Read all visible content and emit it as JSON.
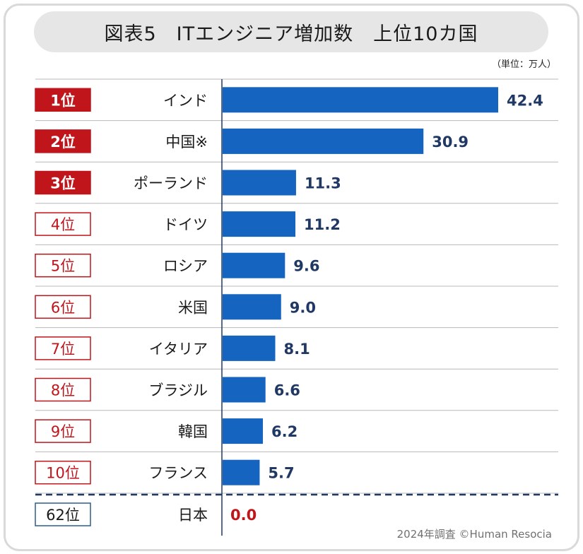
{
  "title": "図表5　ITエンジニア増加数　上位10カ国",
  "unit": "（単位：万人）",
  "footer": "2024年調査 ©Human Resocia",
  "colors": {
    "bar": "#1565c0",
    "rank_top": "#c0151b",
    "rank_outline": "#c0151b",
    "japan_outline": "#2b5d8a",
    "value_text": "#1f3864",
    "japan_value": "#c0151b",
    "row_line": "#b8b8b8",
    "axis": "#1f3864"
  },
  "chart_data": {
    "type": "bar",
    "orientation": "horizontal",
    "title": "ITエンジニア増加数　上位10カ国",
    "unit": "万人",
    "xlim": [
      0,
      42.4
    ],
    "rows": [
      {
        "rank": "1位",
        "country": "インド",
        "value": 42.4,
        "label": "42.4",
        "style": "top"
      },
      {
        "rank": "2位",
        "country": "中国※",
        "value": 30.9,
        "label": "30.9",
        "style": "top"
      },
      {
        "rank": "3位",
        "country": "ポーランド",
        "value": 11.3,
        "label": "11.3",
        "style": "top"
      },
      {
        "rank": "4位",
        "country": "ドイツ",
        "value": 11.2,
        "label": "11.2",
        "style": "outline"
      },
      {
        "rank": "5位",
        "country": "ロシア",
        "value": 9.6,
        "label": "9.6",
        "style": "outline"
      },
      {
        "rank": "6位",
        "country": "米国",
        "value": 9.0,
        "label": "9.0",
        "style": "outline"
      },
      {
        "rank": "7位",
        "country": "イタリア",
        "value": 8.1,
        "label": "8.1",
        "style": "outline"
      },
      {
        "rank": "8位",
        "country": "ブラジル",
        "value": 6.6,
        "label": "6.6",
        "style": "outline"
      },
      {
        "rank": "9位",
        "country": "韓国",
        "value": 6.2,
        "label": "6.2",
        "style": "outline"
      },
      {
        "rank": "10位",
        "country": "フランス",
        "value": 5.7,
        "label": "5.7",
        "style": "outline"
      }
    ],
    "reference": {
      "rank": "62位",
      "country": "日本",
      "value": 0.0,
      "label": "0.0",
      "style": "japan"
    }
  }
}
